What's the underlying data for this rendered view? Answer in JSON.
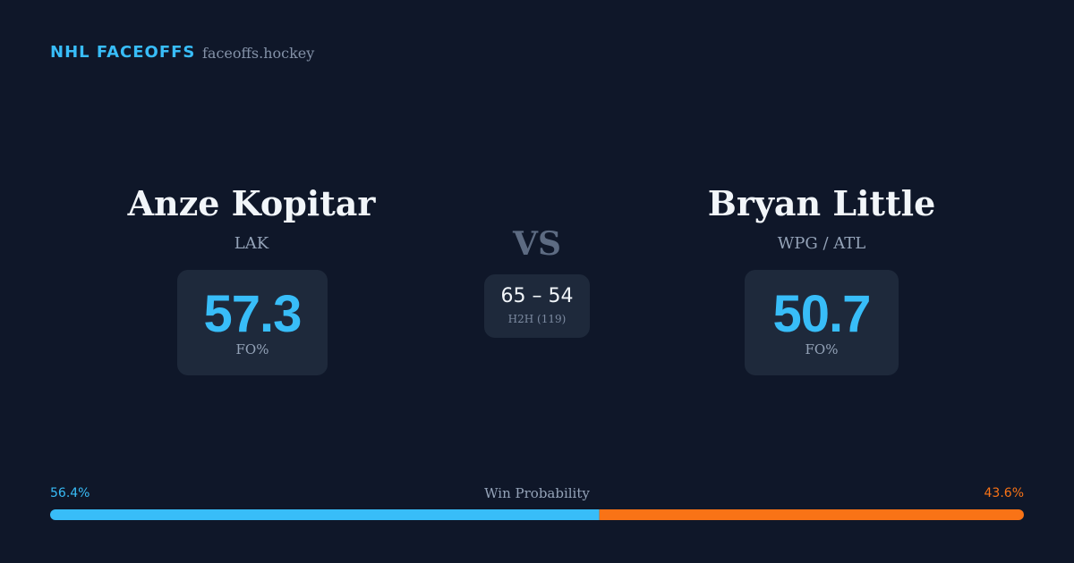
{
  "header": {
    "title": "NHL FACEOFFS",
    "site": "faceoffs.hockey"
  },
  "players": [
    {
      "name": "Anze Kopitar",
      "team": "LAK",
      "fo_pct": 57.3,
      "fo_label": "FO%"
    },
    {
      "name": "Bryan Little",
      "team": "WPG / ATL",
      "fo_pct": 50.7,
      "fo_label": "FO%"
    }
  ],
  "vs": "VS",
  "h2h": {
    "score": "65 – 54",
    "label": "H2H (119)"
  },
  "win_probability": {
    "label": "Win Probability",
    "values": [
      56.4,
      43.6
    ],
    "value_labels": [
      "56.4%",
      "43.6%"
    ],
    "colors": [
      "#38bdf8",
      "#f97316"
    ]
  }
}
